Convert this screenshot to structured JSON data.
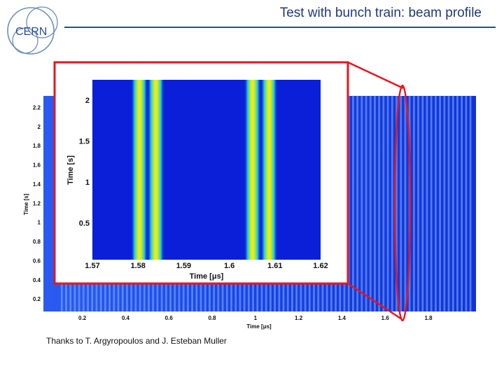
{
  "header": {
    "title": "Test with bunch train: beam profile"
  },
  "logo": {
    "text": "CERN",
    "icon": "cern-logo-icon"
  },
  "footer": {
    "credits": "Thanks to T. Argyropoulos and J. Esteban Muller"
  },
  "colors": {
    "accent": "#2b4c93",
    "highlight": "#e8141e",
    "background": "#0a2ad8"
  },
  "chart_data": [
    {
      "type": "heatmap",
      "xlabel": "Time [μs]",
      "ylabel": "Time [s]",
      "x_ticks": [
        "0.2",
        "0.4",
        "0.6",
        "0.8",
        "1",
        "1.2",
        "1.4",
        "1.6",
        "1.8"
      ],
      "y_ticks": [
        "0.2",
        "0.4",
        "0.6",
        "0.8",
        "1",
        "1.2",
        "1.4",
        "1.6",
        "1.8",
        "2",
        "2.2"
      ],
      "xlim": [
        0.02,
        2.02
      ],
      "ylim": [
        0.07,
        2.32
      ]
    },
    {
      "type": "heatmap",
      "xlabel": "Time [μs]",
      "ylabel": "Time [s]",
      "x_ticks": [
        "1.57",
        "1.58",
        "1.59",
        "1.6",
        "1.61",
        "1.62"
      ],
      "y_ticks": [
        "0.5",
        "1",
        "1.5",
        "2"
      ],
      "xlim": [
        1.57,
        1.62
      ],
      "ylim": [
        0.05,
        2.25
      ],
      "bunch_centers": [
        1.5803,
        1.5839,
        1.6051,
        1.6087
      ]
    }
  ]
}
